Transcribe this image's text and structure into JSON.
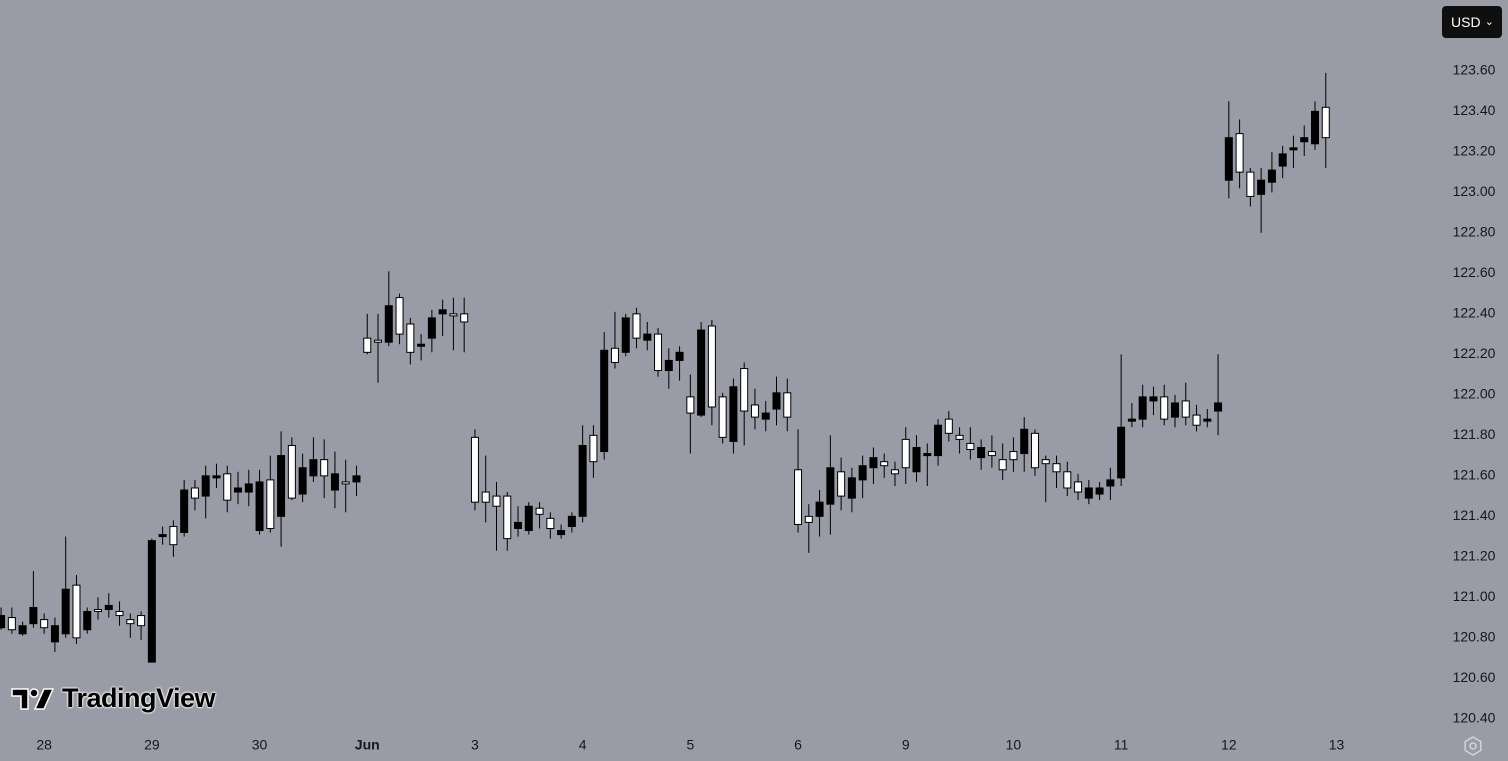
{
  "chart_data": {
    "type": "candlestick",
    "currency": "USD",
    "watermark": "TradingView",
    "up_color": "#ffffff",
    "down_color": "#000000",
    "x": [
      0,
      1,
      2,
      3,
      4,
      5,
      6,
      7,
      8,
      9,
      10,
      11,
      12,
      13,
      14,
      15,
      16,
      17,
      18,
      19,
      20,
      21,
      22,
      23,
      24,
      25,
      26,
      27,
      28,
      29,
      30,
      31,
      32,
      33,
      34,
      35,
      36,
      37,
      38,
      39,
      40,
      41,
      42,
      43,
      44,
      45,
      46,
      47,
      48,
      49,
      50,
      51,
      52,
      53,
      54,
      55,
      56,
      57,
      58,
      59,
      60,
      61,
      62,
      63,
      64,
      65,
      66,
      67,
      68,
      69,
      70,
      71,
      72,
      73,
      74,
      75,
      76,
      77,
      78,
      79,
      80,
      81,
      82,
      83,
      84,
      85,
      86,
      87,
      88,
      89,
      90,
      91,
      92,
      93,
      94,
      95,
      96,
      97,
      98,
      99,
      100,
      101,
      102,
      103,
      104,
      105,
      106,
      107,
      108,
      109,
      110,
      111,
      112,
      113,
      114,
      115,
      116,
      117,
      118,
      119,
      120,
      121,
      122,
      123
    ],
    "open": [
      120.91,
      120.84,
      120.86,
      120.95,
      120.85,
      120.86,
      121.04,
      120.8,
      120.93,
      120.93,
      120.96,
      120.91,
      120.87,
      120.86,
      121.28,
      121.31,
      121.26,
      121.53,
      121.49,
      121.6,
      121.6,
      121.48,
      121.54,
      121.56,
      121.57,
      121.34,
      121.7,
      121.49,
      121.64,
      121.68,
      121.6,
      121.61,
      121.56,
      121.6,
      122.21,
      122.26,
      122.44,
      122.3,
      122.21,
      122.25,
      122.38,
      122.42,
      122.39,
      122.36,
      121.47,
      121.47,
      121.45,
      121.29,
      121.37,
      121.45,
      121.41,
      121.34,
      121.33,
      121.4,
      121.75,
      121.67,
      122.22,
      122.16,
      122.38,
      122.28,
      122.3,
      122.12,
      122.17,
      122.21,
      121.91,
      122.32,
      121.94,
      121.79,
      122.04,
      121.92,
      121.89,
      121.91,
      122.01,
      121.89,
      121.36,
      121.37,
      121.47,
      121.64,
      121.5,
      121.59,
      121.65,
      121.69,
      121.65,
      121.61,
      121.64,
      121.74,
      121.71,
      121.85,
      121.81,
      121.78,
      121.73,
      121.74,
      121.7,
      121.63,
      121.68,
      121.83,
      121.64,
      121.66,
      121.62,
      121.54,
      121.52,
      121.54,
      121.54,
      121.58,
      121.84,
      121.88,
      121.99,
      121.99,
      121.88,
      121.96,
      121.89,
      121.85,
      121.88,
      121.96,
      123.27,
      123.1,
      122.98,
      123.06,
      123.11,
      123.19,
      123.22,
      123.27,
      123.4,
      123.27
    ],
    "high": [
      120.95,
      120.95,
      120.88,
      121.13,
      120.92,
      120.9,
      121.3,
      121.11,
      120.95,
      121.0,
      121.02,
      120.98,
      120.92,
      120.93,
      121.29,
      121.35,
      121.38,
      121.58,
      121.58,
      121.65,
      121.66,
      121.65,
      121.62,
      121.63,
      121.63,
      121.7,
      121.82,
      121.79,
      121.71,
      121.79,
      121.78,
      121.72,
      121.68,
      121.65,
      122.4,
      122.4,
      122.61,
      122.5,
      122.38,
      122.3,
      122.42,
      122.47,
      122.48,
      122.48,
      121.83,
      121.7,
      121.57,
      121.52,
      121.45,
      121.47,
      121.47,
      121.42,
      121.36,
      121.42,
      121.85,
      121.85,
      122.31,
      122.41,
      122.4,
      122.43,
      122.36,
      122.33,
      122.23,
      122.24,
      122.1,
      122.36,
      122.37,
      122.01,
      122.08,
      122.16,
      122.03,
      121.97,
      122.09,
      122.08,
      121.83,
      121.46,
      121.53,
      121.8,
      121.69,
      121.64,
      121.7,
      121.74,
      121.71,
      121.67,
      121.84,
      121.8,
      121.76,
      121.88,
      121.92,
      121.84,
      121.84,
      121.78,
      121.8,
      121.76,
      121.79,
      121.89,
      121.83,
      121.7,
      121.7,
      121.67,
      121.61,
      121.58,
      121.57,
      121.64,
      122.2,
      121.96,
      122.05,
      122.04,
      122.05,
      122.0,
      122.06,
      121.95,
      121.93,
      122.2,
      123.45,
      123.36,
      123.12,
      123.12,
      123.2,
      123.23,
      123.28,
      123.33,
      123.45,
      123.59
    ],
    "low": [
      120.84,
      120.82,
      120.81,
      120.85,
      120.82,
      120.73,
      120.8,
      120.77,
      120.82,
      120.89,
      120.9,
      120.86,
      120.8,
      120.79,
      120.68,
      121.26,
      121.2,
      121.3,
      121.43,
      121.39,
      121.54,
      121.42,
      121.46,
      121.45,
      121.31,
      121.32,
      121.25,
      121.48,
      121.47,
      121.57,
      121.49,
      121.44,
      121.42,
      121.5,
      122.2,
      122.06,
      122.24,
      122.25,
      122.15,
      122.17,
      122.21,
      122.29,
      122.22,
      122.21,
      121.43,
      121.37,
      121.23,
      121.23,
      121.3,
      121.31,
      121.34,
      121.29,
      121.29,
      121.32,
      121.37,
      121.59,
      121.68,
      122.13,
      122.19,
      122.23,
      122.22,
      122.09,
      122.03,
      122.07,
      121.71,
      121.89,
      121.85,
      121.76,
      121.71,
      121.75,
      121.83,
      121.82,
      121.85,
      121.82,
      121.32,
      121.22,
      121.3,
      121.31,
      121.43,
      121.42,
      121.49,
      121.56,
      121.59,
      121.55,
      121.56,
      121.57,
      121.55,
      121.65,
      121.77,
      121.71,
      121.68,
      121.63,
      121.64,
      121.58,
      121.62,
      121.62,
      121.6,
      121.47,
      121.54,
      121.5,
      121.48,
      121.46,
      121.48,
      121.48,
      121.55,
      121.84,
      121.84,
      121.9,
      121.85,
      121.84,
      121.85,
      121.82,
      121.84,
      121.8,
      122.97,
      123.02,
      122.93,
      122.8,
      123.0,
      123.07,
      123.12,
      123.18,
      123.21,
      123.12
    ],
    "close": [
      120.85,
      120.9,
      120.82,
      120.87,
      120.89,
      120.78,
      120.82,
      121.06,
      120.84,
      120.94,
      120.94,
      120.93,
      120.89,
      120.91,
      120.68,
      121.3,
      121.35,
      121.32,
      121.54,
      121.5,
      121.59,
      121.61,
      121.52,
      121.52,
      121.33,
      121.58,
      121.4,
      121.75,
      121.51,
      121.6,
      121.68,
      121.53,
      121.57,
      121.57,
      122.28,
      122.27,
      122.26,
      122.48,
      122.35,
      122.24,
      122.28,
      122.4,
      122.4,
      122.4,
      121.79,
      121.52,
      121.5,
      121.5,
      121.34,
      121.33,
      121.44,
      121.39,
      121.31,
      121.35,
      121.4,
      121.8,
      121.72,
      122.23,
      122.21,
      122.4,
      122.27,
      122.3,
      122.12,
      122.17,
      121.99,
      121.9,
      122.34,
      121.99,
      121.77,
      122.13,
      121.95,
      121.88,
      121.93,
      122.01,
      121.63,
      121.4,
      121.4,
      121.46,
      121.62,
      121.49,
      121.58,
      121.64,
      121.67,
      121.63,
      121.78,
      121.62,
      121.7,
      121.7,
      121.88,
      121.8,
      121.76,
      121.69,
      121.72,
      121.68,
      121.72,
      121.71,
      121.81,
      121.68,
      121.66,
      121.62,
      121.57,
      121.49,
      121.51,
      121.55,
      121.59,
      121.87,
      121.88,
      121.97,
      121.99,
      121.89,
      121.97,
      121.9,
      121.87,
      121.92,
      123.06,
      123.29,
      123.1,
      122.99,
      123.05,
      123.13,
      123.21,
      123.25,
      123.24,
      123.42
    ],
    "xlim": [
      -0.1,
      131.75
    ],
    "xticks": [
      {
        "value": 4,
        "label": "28"
      },
      {
        "value": 14,
        "label": "29"
      },
      {
        "value": 24,
        "label": "30"
      },
      {
        "value": 34,
        "label": "Jun"
      },
      {
        "value": 44,
        "label": "3"
      },
      {
        "value": 54,
        "label": "4"
      },
      {
        "value": 64,
        "label": "5"
      },
      {
        "value": 74,
        "label": "6"
      },
      {
        "value": 84,
        "label": "9"
      },
      {
        "value": 94,
        "label": "10"
      },
      {
        "value": 104,
        "label": "11"
      },
      {
        "value": 114,
        "label": "12"
      },
      {
        "value": 124,
        "label": "13"
      }
    ],
    "ylim": [
      120.33,
      123.95
    ],
    "yticks": [
      {
        "value": 120.4,
        "label": "120.40"
      },
      {
        "value": 120.6,
        "label": "120.60"
      },
      {
        "value": 120.8,
        "label": "120.80"
      },
      {
        "value": 121,
        "label": "121.00"
      },
      {
        "value": 121.2,
        "label": "121.20"
      },
      {
        "value": 121.4,
        "label": "121.40"
      },
      {
        "value": 121.6,
        "label": "121.60"
      },
      {
        "value": 121.8,
        "label": "121.80"
      },
      {
        "value": 122,
        "label": "122.00"
      },
      {
        "value": 122.2,
        "label": "122.20"
      },
      {
        "value": 122.4,
        "label": "122.40"
      },
      {
        "value": 122.6,
        "label": "122.60"
      },
      {
        "value": 122.8,
        "label": "122.80"
      },
      {
        "value": 123,
        "label": "123.00"
      },
      {
        "value": 123.2,
        "label": "123.20"
      },
      {
        "value": 123.4,
        "label": "123.40"
      },
      {
        "value": 123.6,
        "label": "123.60"
      }
    ]
  }
}
